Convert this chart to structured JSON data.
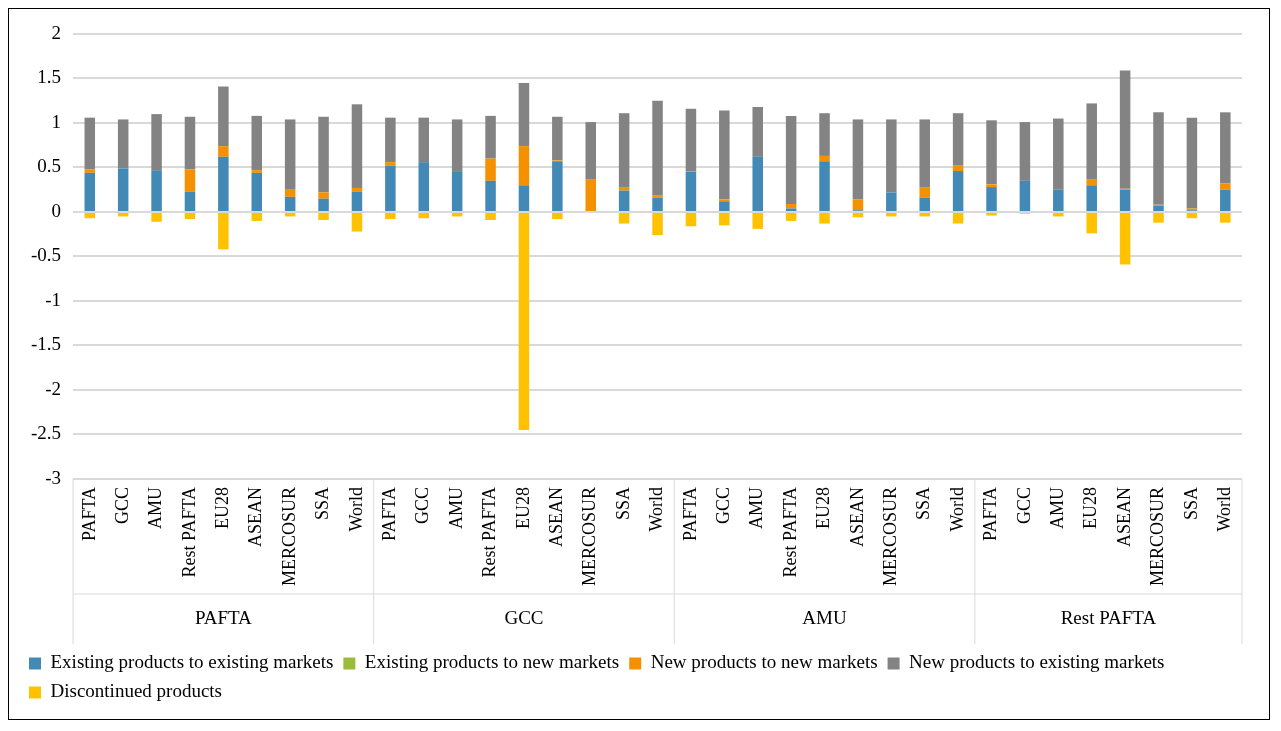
{
  "chart_data": {
    "type": "bar",
    "stacked": true,
    "categories": [
      "PAFTA",
      "GCC",
      "AMU",
      "Rest PAFTA",
      "EU28",
      "ASEAN",
      "MERCOSUR",
      "SSA",
      "World",
      "PAFTA",
      "GCC",
      "AMU",
      "Rest PAFTA",
      "EU28",
      "ASEAN",
      "MERCOSUR",
      "SSA",
      "World",
      "PAFTA",
      "GCC",
      "AMU",
      "Rest PAFTA",
      "EU28",
      "ASEAN",
      "MERCOSUR",
      "SSA",
      "World",
      "PAFTA",
      "GCC",
      "AMU",
      "EU28",
      "ASEAN",
      "MERCOSUR",
      "SSA",
      "World"
    ],
    "annotations": [
      "PAFTA",
      "GCC",
      "AMU",
      "Rest PAFTA"
    ],
    "series": [
      {
        "name": "Existing products to existing markets",
        "color": "#428ab5",
        "values": [
          0.44,
          0.49,
          0.47,
          0.23,
          0.62,
          0.44,
          0.17,
          0.15,
          0.23,
          0.52,
          0.56,
          0.45,
          0.35,
          0.3,
          0.57,
          0,
          0.24,
          0.16,
          0.45,
          0.12,
          0.62,
          0.04,
          0.57,
          0.02,
          0.22,
          0.16,
          0.46,
          0.28,
          0.35,
          0.25,
          0.3,
          0.25,
          0.07,
          0.02,
          0.25
        ]
      },
      {
        "name": "Existing products to new markets",
        "color": "#9bbb3b",
        "values": [
          0,
          0,
          0,
          0,
          0,
          0,
          0,
          0,
          0,
          0,
          0,
          0,
          0,
          0,
          0,
          0,
          0,
          0,
          0,
          0,
          0,
          0,
          0,
          0,
          0,
          0,
          0,
          0,
          0,
          0,
          0,
          0,
          0,
          0,
          0
        ]
      },
      {
        "name": "New products to new markets",
        "color": "#f59100",
        "values": [
          0.04,
          0,
          0,
          0.25,
          0.12,
          0.03,
          0.08,
          0.07,
          0.04,
          0.04,
          0,
          0,
          0.25,
          0.44,
          0.01,
          0.37,
          0.04,
          0.03,
          0.01,
          0.02,
          0,
          0.05,
          0.06,
          0.12,
          0,
          0.12,
          0.06,
          0.03,
          0,
          0,
          0.07,
          0.01,
          0.01,
          0.02,
          0.07
        ]
      },
      {
        "name": "New products to existing markets",
        "color": "#838383",
        "values": [
          0.58,
          0.55,
          0.63,
          0.59,
          0.67,
          0.61,
          0.79,
          0.85,
          0.94,
          0.5,
          0.5,
          0.59,
          0.48,
          0.71,
          0.49,
          0.64,
          0.83,
          1.06,
          0.7,
          1.0,
          0.56,
          0.99,
          0.48,
          0.9,
          0.82,
          0.76,
          0.59,
          0.72,
          0.66,
          0.8,
          0.85,
          1.33,
          1.04,
          1.02,
          0.8
        ]
      },
      {
        "name": "Discontinued products",
        "color": "#fec200",
        "values": [
          -0.07,
          -0.05,
          -0.11,
          -0.08,
          -0.42,
          -0.1,
          -0.05,
          -0.09,
          -0.22,
          -0.08,
          -0.07,
          -0.05,
          -0.09,
          -2.45,
          -0.08,
          0,
          -0.13,
          -0.26,
          -0.16,
          -0.15,
          -0.19,
          -0.1,
          -0.13,
          -0.06,
          -0.05,
          -0.05,
          -0.13,
          -0.04,
          -0.02,
          -0.05,
          -0.24,
          -0.59,
          -0.12,
          -0.07,
          -0.12
        ]
      }
    ],
    "ylim": [
      -3,
      2
    ],
    "yticks": [
      -3,
      -2.5,
      -2,
      -1.5,
      -1,
      -0.5,
      0,
      0.5,
      1,
      1.5,
      2
    ],
    "grid": "y",
    "legend": "bottom"
  }
}
